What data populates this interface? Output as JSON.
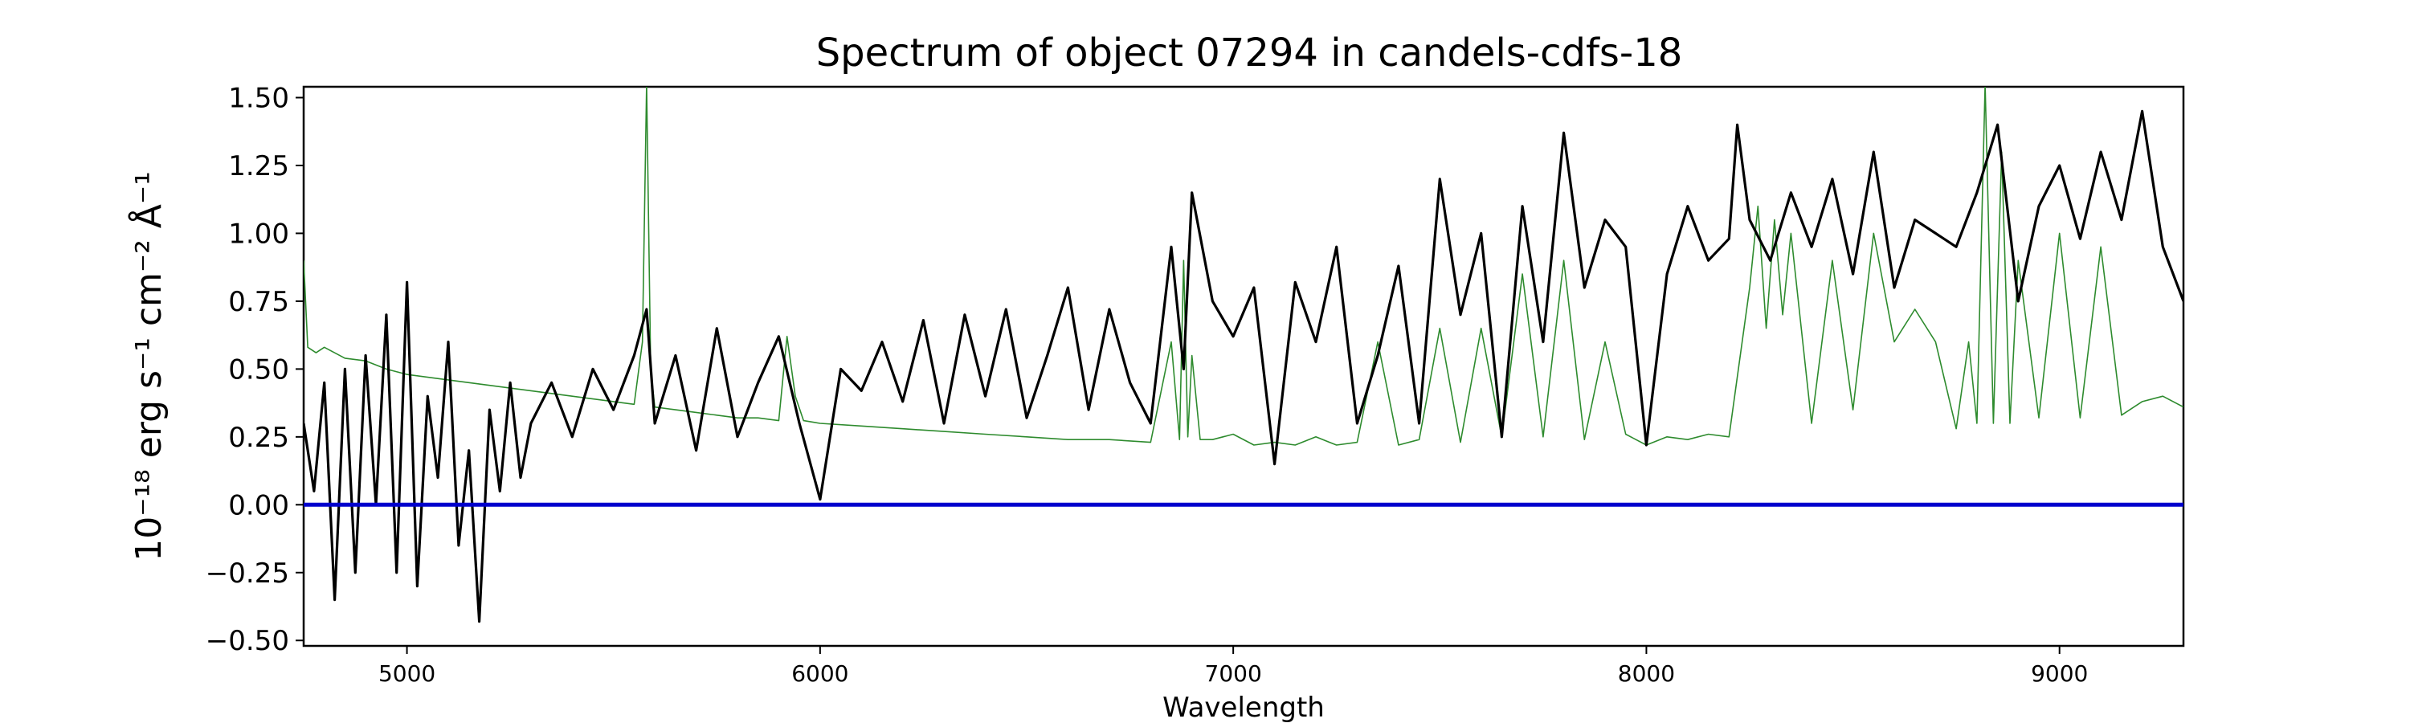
{
  "chart_data": {
    "type": "line",
    "title": "Spectrum of object 07294 in candels-cdfs-18",
    "xlabel": "Wavelength",
    "ylabel": "10⁻¹⁸ erg s⁻¹ cm⁻² Å⁻¹",
    "xlim": [
      4750,
      9300
    ],
    "ylim": [
      -0.52,
      1.54
    ],
    "x_ticks": [
      5000,
      6000,
      7000,
      8000,
      9000
    ],
    "y_ticks": [
      -0.5,
      -0.25,
      0.0,
      0.25,
      0.5,
      0.75,
      1.0,
      1.25,
      1.5
    ],
    "y_tick_labels": [
      "−0.50",
      "−0.25",
      "0.00",
      "0.25",
      "0.50",
      "0.75",
      "1.00",
      "1.25",
      "1.50"
    ],
    "grid": false,
    "series": [
      {
        "role": "flux",
        "color": "#000000",
        "x": [
          4750,
          4775,
          4800,
          4825,
          4850,
          4875,
          4900,
          4925,
          4950,
          4975,
          5000,
          5025,
          5050,
          5075,
          5100,
          5125,
          5150,
          5175,
          5200,
          5225,
          5250,
          5275,
          5300,
          5350,
          5400,
          5450,
          5500,
          5550,
          5580,
          5600,
          5650,
          5700,
          5750,
          5800,
          5850,
          5900,
          5950,
          6000,
          6050,
          6100,
          6150,
          6200,
          6250,
          6300,
          6350,
          6400,
          6450,
          6500,
          6550,
          6600,
          6650,
          6700,
          6750,
          6800,
          6850,
          6880,
          6900,
          6950,
          7000,
          7050,
          7100,
          7150,
          7200,
          7250,
          7300,
          7350,
          7400,
          7450,
          7500,
          7550,
          7600,
          7650,
          7700,
          7750,
          7800,
          7850,
          7900,
          7950,
          8000,
          8050,
          8100,
          8150,
          8200,
          8220,
          8250,
          8300,
          8350,
          8400,
          8450,
          8500,
          8550,
          8600,
          8650,
          8700,
          8750,
          8800,
          8850,
          8900,
          8950,
          9000,
          9050,
          9100,
          9150,
          9200,
          9250,
          9300
        ],
        "y": [
          0.3,
          0.05,
          0.45,
          -0.35,
          0.5,
          -0.25,
          0.55,
          0.0,
          0.7,
          -0.25,
          0.82,
          -0.3,
          0.4,
          0.1,
          0.6,
          -0.15,
          0.2,
          -0.43,
          0.35,
          0.05,
          0.45,
          0.1,
          0.3,
          0.45,
          0.25,
          0.5,
          0.35,
          0.55,
          0.72,
          0.3,
          0.55,
          0.2,
          0.65,
          0.25,
          0.45,
          0.62,
          0.3,
          0.02,
          0.5,
          0.42,
          0.6,
          0.38,
          0.68,
          0.3,
          0.7,
          0.4,
          0.72,
          0.32,
          0.55,
          0.8,
          0.35,
          0.72,
          0.45,
          0.3,
          0.95,
          0.5,
          1.15,
          0.75,
          0.62,
          0.8,
          0.15,
          0.82,
          0.6,
          0.95,
          0.3,
          0.55,
          0.88,
          0.3,
          1.2,
          0.7,
          1.0,
          0.25,
          1.1,
          0.6,
          1.37,
          0.8,
          1.05,
          0.95,
          0.22,
          0.85,
          1.1,
          0.9,
          0.98,
          1.4,
          1.05,
          0.9,
          1.15,
          0.95,
          1.2,
          0.85,
          1.3,
          0.8,
          1.05,
          1.0,
          0.95,
          1.15,
          1.4,
          0.75,
          1.1,
          1.25,
          0.98,
          1.3,
          1.05,
          1.45,
          0.95,
          0.75
        ]
      },
      {
        "role": "error",
        "color": "#2e8b2e",
        "x": [
          4750,
          4760,
          4780,
          4800,
          4850,
          4900,
          4950,
          5000,
          5100,
          5200,
          5300,
          5400,
          5500,
          5550,
          5570,
          5580,
          5590,
          5600,
          5650,
          5700,
          5750,
          5800,
          5850,
          5900,
          5920,
          5940,
          5960,
          6000,
          6100,
          6200,
          6300,
          6400,
          6500,
          6600,
          6700,
          6800,
          6850,
          6870,
          6880,
          6890,
          6900,
          6920,
          6950,
          7000,
          7050,
          7100,
          7150,
          7200,
          7250,
          7300,
          7350,
          7400,
          7450,
          7500,
          7550,
          7600,
          7650,
          7700,
          7750,
          7800,
          7850,
          7900,
          7950,
          8000,
          8050,
          8100,
          8150,
          8200,
          8250,
          8270,
          8290,
          8310,
          8330,
          8350,
          8400,
          8450,
          8500,
          8550,
          8600,
          8650,
          8700,
          8750,
          8780,
          8800,
          8820,
          8840,
          8860,
          8880,
          8900,
          8950,
          9000,
          9050,
          9100,
          9150,
          9200,
          9250,
          9300
        ],
        "y": [
          0.9,
          0.58,
          0.56,
          0.58,
          0.54,
          0.53,
          0.5,
          0.48,
          0.46,
          0.44,
          0.42,
          0.4,
          0.38,
          0.37,
          0.6,
          1.55,
          0.5,
          0.36,
          0.35,
          0.34,
          0.33,
          0.32,
          0.32,
          0.31,
          0.62,
          0.4,
          0.31,
          0.3,
          0.29,
          0.28,
          0.27,
          0.26,
          0.25,
          0.24,
          0.24,
          0.23,
          0.6,
          0.24,
          0.9,
          0.25,
          0.55,
          0.24,
          0.24,
          0.26,
          0.22,
          0.23,
          0.22,
          0.25,
          0.22,
          0.23,
          0.6,
          0.22,
          0.24,
          0.65,
          0.23,
          0.65,
          0.25,
          0.85,
          0.25,
          0.9,
          0.24,
          0.6,
          0.26,
          0.22,
          0.25,
          0.24,
          0.26,
          0.25,
          0.8,
          1.1,
          0.65,
          1.05,
          0.7,
          1.0,
          0.3,
          0.9,
          0.35,
          1.0,
          0.6,
          0.72,
          0.6,
          0.28,
          0.6,
          0.3,
          1.55,
          0.3,
          1.3,
          0.3,
          0.9,
          0.32,
          1.0,
          0.32,
          0.95,
          0.33,
          0.38,
          0.4,
          0.36
        ]
      },
      {
        "role": "zero",
        "color": "#0000cd",
        "x": [
          4750,
          9300
        ],
        "y": [
          0,
          0
        ]
      }
    ]
  }
}
